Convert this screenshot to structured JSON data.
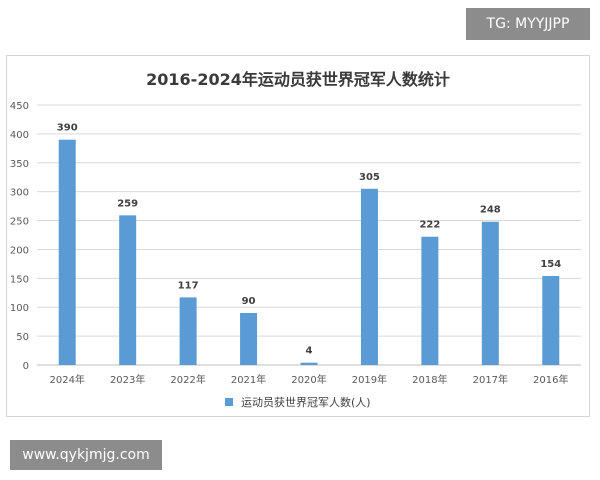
{
  "overlay": {
    "top_tag": "TG: MYYJJPP",
    "bottom_tag": "www.qykjmjg.com"
  },
  "colors": {
    "bar": "#5b9bd5",
    "grid": "#d9d9d9",
    "axis_text": "#595959"
  },
  "chart_data": {
    "type": "bar",
    "title": "2016-2024年运动员获世界冠军人数统计",
    "categories": [
      "2024年",
      "2023年",
      "2022年",
      "2021年",
      "2020年",
      "2019年",
      "2018年",
      "2017年",
      "2016年"
    ],
    "series": [
      {
        "name": "运动员获世界冠军人数(人)",
        "values": [
          390,
          259,
          117,
          90,
          4,
          305,
          222,
          248,
          154
        ]
      }
    ],
    "ylim": [
      0,
      450
    ],
    "yticks": [
      0,
      50,
      100,
      150,
      200,
      250,
      300,
      350,
      400,
      450
    ],
    "grid": true,
    "legend_position": "bottom"
  }
}
